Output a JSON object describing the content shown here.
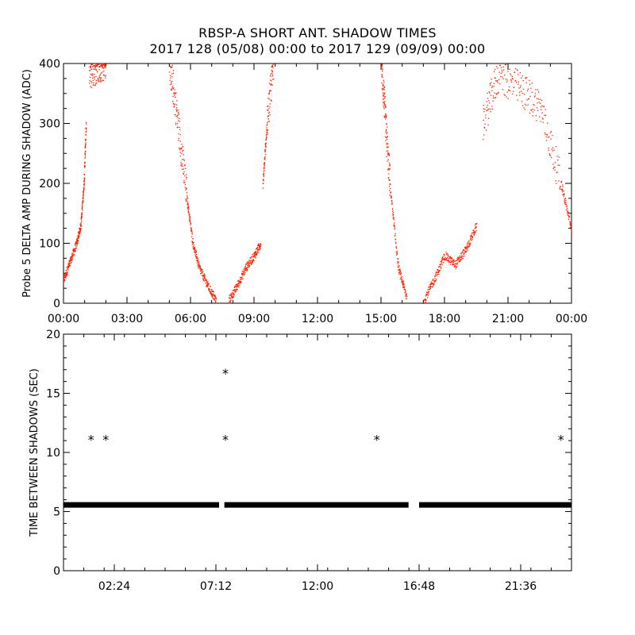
{
  "title_line1": "RBSP-A SHORT ANT. SHADOW TIMES",
  "title_line2": "2017 128 (05/08) 00:00 to 2017 129 (09/09) 00:00",
  "chart_data": [
    {
      "type": "scatter",
      "ylabel": "Probe 5 DELTA AMP DURING SHADOW (ADC)",
      "xlabel": "",
      "xlim": [
        0,
        24
      ],
      "ylim": [
        0,
        400
      ],
      "x_ticks": [
        "00:00",
        "03:00",
        "06:00",
        "09:00",
        "12:00",
        "15:00",
        "18:00",
        "21:00",
        "00:00"
      ],
      "y_ticks": [
        "0",
        "100",
        "200",
        "300",
        "400"
      ],
      "marker_color": "#ff2200",
      "series": [
        {
          "segments": [
            {
              "x": [
                0.0,
                0.3,
                0.6,
                0.8,
                0.95,
                1.05
              ],
              "y": [
                40,
                70,
                100,
                130,
                200,
                300
              ]
            },
            {
              "x": [
                1.2,
                1.6,
                2.0
              ],
              "y": [
                380,
                400,
                400
              ]
            },
            {
              "x": [
                5.0,
                5.4,
                5.8,
                6.1,
                6.4,
                6.8,
                7.2
              ],
              "y": [
                400,
                300,
                180,
                100,
                60,
                30,
                5
              ]
            },
            {
              "x": [
                7.8,
                8.2,
                8.6,
                9.0,
                9.3
              ],
              "y": [
                5,
                30,
                60,
                80,
                100
              ]
            },
            {
              "x": [
                9.4,
                9.6,
                9.9
              ],
              "y": [
                200,
                300,
                400
              ]
            },
            {
              "x": [
                15.0,
                15.2,
                15.4,
                15.8,
                16.2
              ],
              "y": [
                400,
                300,
                200,
                60,
                10
              ]
            },
            {
              "x": [
                17.0,
                17.5,
                18.0,
                18.5,
                19.0,
                19.5
              ],
              "y": [
                5,
                40,
                80,
                65,
                90,
                130
              ]
            },
            {
              "x": [
                19.8,
                20.5,
                21.5,
                22.5,
                23.5,
                24.0
              ],
              "y": [
                300,
                380,
                360,
                330,
                200,
                120
              ]
            }
          ]
        }
      ]
    },
    {
      "type": "scatter",
      "ylabel": "TIME BETWEEN SHADOWS (SEC)",
      "xlabel": "",
      "xlim": [
        0,
        24
      ],
      "ylim": [
        0,
        20
      ],
      "x_ticks": [
        "02:24",
        "07:12",
        "12:00",
        "16:48",
        "21:36"
      ],
      "y_ticks": [
        "0",
        "5",
        "10",
        "15",
        "20"
      ],
      "marker": "*",
      "marker_color": "#000000",
      "baseline": {
        "y": 5.6,
        "x_ranges": [
          [
            0.0,
            7.35
          ],
          [
            7.6,
            16.3
          ],
          [
            16.8,
            24.0
          ]
        ]
      },
      "points": [
        {
          "x": 1.3,
          "y": 11.1
        },
        {
          "x": 2.0,
          "y": 11.1
        },
        {
          "x": 7.65,
          "y": 16.7
        },
        {
          "x": 7.65,
          "y": 11.1
        },
        {
          "x": 14.8,
          "y": 11.1
        },
        {
          "x": 23.5,
          "y": 11.1
        }
      ]
    }
  ]
}
